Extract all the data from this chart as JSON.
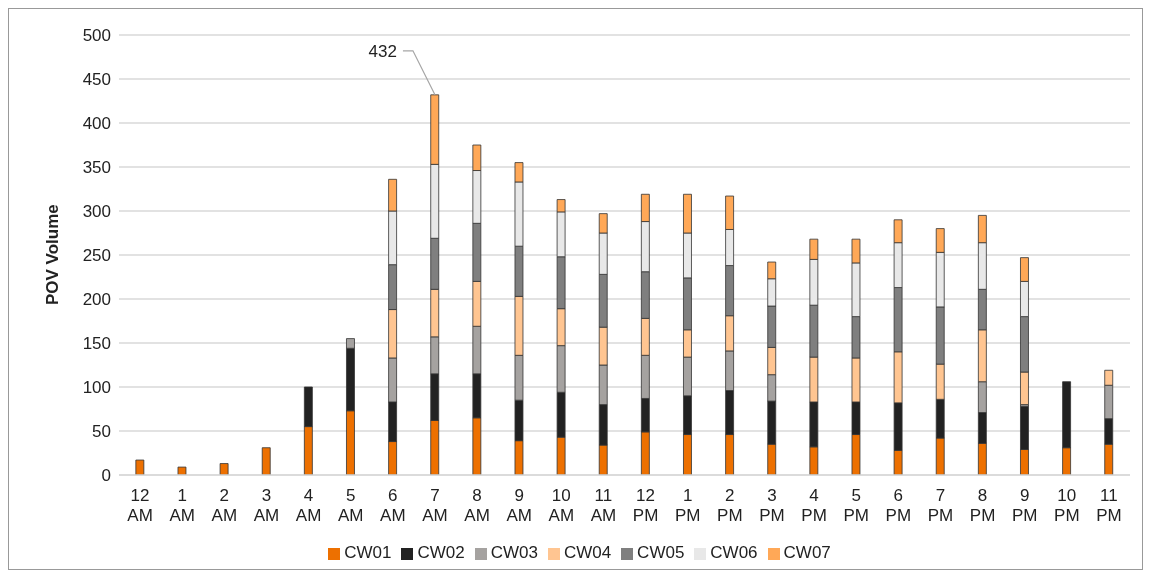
{
  "chart_data": {
    "type": "bar",
    "ylabel": "POV Volume",
    "categories": [
      "12\nAM",
      "1\nAM",
      "2\nAM",
      "3\nAM",
      "4\nAM",
      "5\nAM",
      "6\nAM",
      "7\nAM",
      "8\nAM",
      "9\nAM",
      "10\nAM",
      "11\nAM",
      "12\nPM",
      "1\nPM",
      "2\nPM",
      "3\nPM",
      "4\nPM",
      "5\nPM",
      "6\nPM",
      "7\nPM",
      "8\nPM",
      "9\nPM",
      "10\nPM",
      "11\nPM"
    ],
    "stacked": true,
    "series": [
      {
        "name": "CW01",
        "color": "#ed7000",
        "values": [
          17,
          9,
          13,
          31,
          55,
          73,
          38,
          62,
          65,
          39,
          43,
          34,
          49,
          46,
          46,
          35,
          32,
          46,
          28,
          42,
          36,
          29,
          31,
          35
        ]
      },
      {
        "name": "CW02",
        "color": "#222222",
        "values": [
          null,
          null,
          null,
          null,
          45,
          71,
          45,
          53,
          50,
          46,
          51,
          46,
          38,
          44,
          50,
          49,
          51,
          37,
          54,
          44,
          35,
          49,
          75,
          29
        ]
      },
      {
        "name": "CW03",
        "color": "#a5a2a0",
        "values": [
          null,
          null,
          null,
          null,
          null,
          11,
          50,
          42,
          54,
          51,
          53,
          45,
          49,
          44,
          45,
          30,
          null,
          null,
          null,
          null,
          35,
          2,
          null,
          38
        ]
      },
      {
        "name": "CW04",
        "color": "#ffc591",
        "values": [
          null,
          null,
          null,
          null,
          null,
          null,
          55,
          54,
          51,
          67,
          42,
          43,
          42,
          31,
          40,
          31,
          51,
          50,
          58,
          40,
          59,
          37,
          null,
          17
        ]
      },
      {
        "name": "CW05",
        "color": "#7f7f7f",
        "values": [
          null,
          null,
          null,
          null,
          null,
          null,
          51,
          58,
          66,
          57,
          59,
          60,
          53,
          59,
          57,
          47,
          59,
          47,
          73,
          65,
          46,
          63,
          null,
          null
        ]
      },
      {
        "name": "CW06",
        "color": "#e8e8e8",
        "values": [
          null,
          null,
          null,
          null,
          null,
          null,
          61,
          84,
          60,
          73,
          51,
          47,
          57,
          51,
          41,
          31,
          52,
          61,
          51,
          62,
          53,
          40,
          null,
          null
        ]
      },
      {
        "name": "CW07",
        "color": "#ffa857",
        "values": [
          null,
          null,
          null,
          null,
          null,
          null,
          36,
          79,
          29,
          22,
          14,
          22,
          31,
          44,
          38,
          19,
          23,
          27,
          26,
          27,
          31,
          27,
          null,
          null
        ]
      }
    ],
    "ylim": [
      0,
      500
    ],
    "yticks": [
      0,
      50,
      100,
      150,
      200,
      250,
      300,
      350,
      400,
      450,
      500
    ],
    "grid": "y",
    "legend": "bottom",
    "annotations": [
      {
        "text": "432",
        "x": "7\nAM",
        "y": 432
      }
    ]
  }
}
